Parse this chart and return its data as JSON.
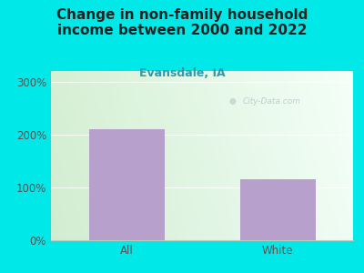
{
  "title": "Change in non-family household\nincome between 2000 and 2022",
  "subtitle": "Evansdale, IA",
  "categories": [
    "All",
    "White"
  ],
  "values": [
    210,
    115
  ],
  "bar_color": "#b8a0cc",
  "outer_bg": "#00e8e8",
  "plot_bg_left": "#d4ecd4",
  "plot_bg_right": "#f0f8f4",
  "title_color": "#222222",
  "subtitle_color": "#3399aa",
  "tick_color": "#555555",
  "yticks": [
    0,
    100,
    200,
    300
  ],
  "ylim": [
    0,
    320
  ],
  "watermark": "City-Data.com",
  "title_fontsize": 11,
  "subtitle_fontsize": 9,
  "tick_fontsize": 8.5
}
